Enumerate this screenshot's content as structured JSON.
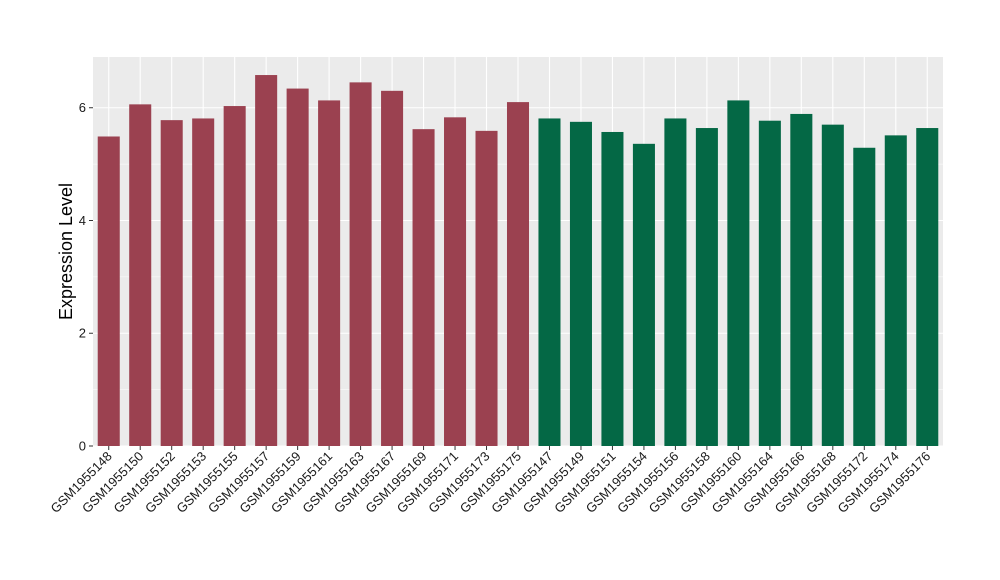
{
  "chart_data": {
    "type": "bar",
    "title": "",
    "xlabel": "",
    "ylabel": "Expression Level",
    "ylim": [
      0,
      6.9
    ],
    "yticks": [
      0,
      2,
      4,
      6
    ],
    "grid": true,
    "legend": "none",
    "colors": {
      "group1": "#9b4150",
      "group2": "#046845",
      "panel": "#ebebeb",
      "gridline": "#ffffff"
    },
    "categories": [
      "GSM1955148",
      "GSM1955150",
      "GSM1955152",
      "GSM1955153",
      "GSM1955155",
      "GSM1955157",
      "GSM1955159",
      "GSM1955161",
      "GSM1955163",
      "GSM1955167",
      "GSM1955169",
      "GSM1955171",
      "GSM1955173",
      "GSM1955175",
      "GSM1955147",
      "GSM1955149",
      "GSM1955151",
      "GSM1955154",
      "GSM1955156",
      "GSM1955158",
      "GSM1955160",
      "GSM1955164",
      "GSM1955166",
      "GSM1955168",
      "GSM1955172",
      "GSM1955174",
      "GSM1955176"
    ],
    "values": [
      5.49,
      6.06,
      5.78,
      5.81,
      6.03,
      6.58,
      6.34,
      6.13,
      6.45,
      6.3,
      5.62,
      5.83,
      5.59,
      6.1,
      5.81,
      5.75,
      5.57,
      5.36,
      5.81,
      5.64,
      6.13,
      5.77,
      5.89,
      5.7,
      5.29,
      5.51,
      5.64
    ],
    "groups": [
      1,
      1,
      1,
      1,
      1,
      1,
      1,
      1,
      1,
      1,
      1,
      1,
      1,
      1,
      2,
      2,
      2,
      2,
      2,
      2,
      2,
      2,
      2,
      2,
      2,
      2,
      2
    ]
  }
}
